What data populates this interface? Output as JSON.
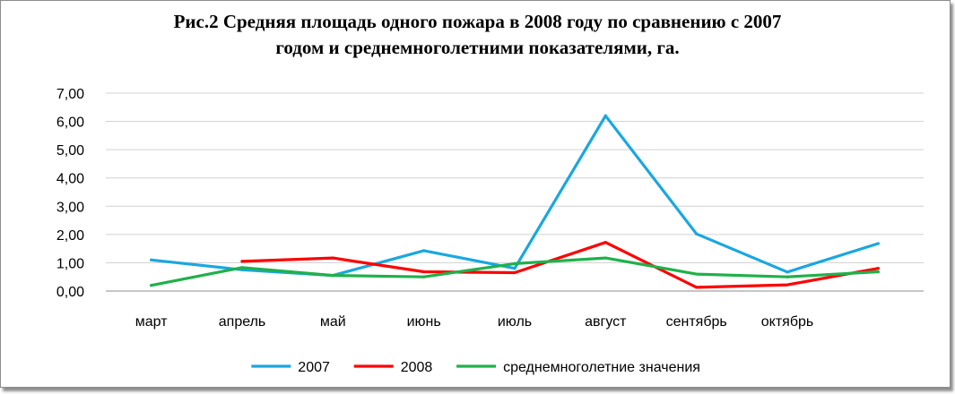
{
  "chart_data": {
    "type": "line",
    "title_lines": [
      "Рис.2 Средняя площадь одного пожара в 2008 году по сравнению с 2007",
      "годом и среднемноголетними показателями, га."
    ],
    "categories": [
      "март",
      "апрель",
      "май",
      "июнь",
      "июль",
      "август",
      "сентябрь",
      "октябрь",
      ""
    ],
    "y_ticks": [
      "0,00",
      "1,00",
      "2,00",
      "3,00",
      "4,00",
      "5,00",
      "6,00",
      "7,00"
    ],
    "ylim": [
      0,
      7
    ],
    "grid": true,
    "legend_position": "bottom",
    "series": [
      {
        "name": "2007",
        "color": "#1aa7e0",
        "values": [
          1.1,
          0.75,
          0.55,
          1.43,
          0.8,
          6.2,
          2.02,
          0.67,
          1.68
        ]
      },
      {
        "name": "2008",
        "color": "#ff0000",
        "values": [
          null,
          1.05,
          1.17,
          0.68,
          0.65,
          1.72,
          0.13,
          0.22,
          0.8
        ]
      },
      {
        "name": "среднемноголетние значения",
        "color": "#1fb14a",
        "values": [
          0.2,
          0.83,
          0.55,
          0.5,
          0.97,
          1.17,
          0.6,
          0.5,
          0.68
        ]
      }
    ]
  }
}
